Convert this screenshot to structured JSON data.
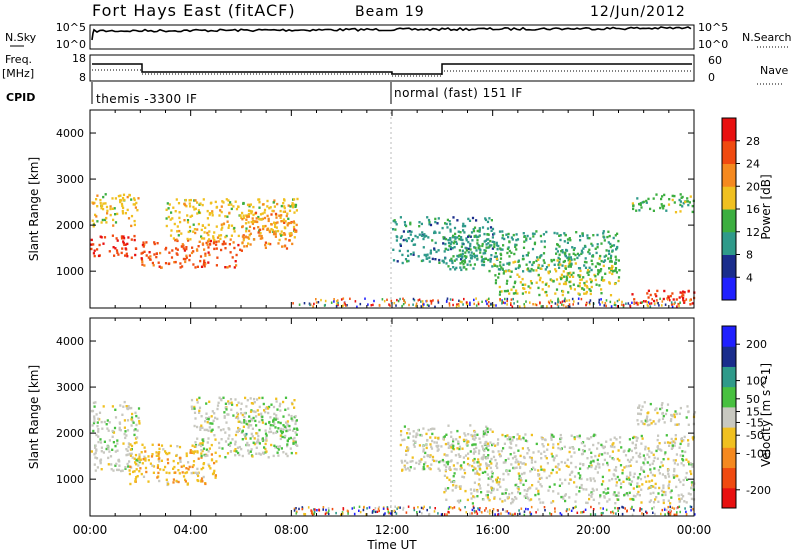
{
  "header": {
    "station": "Fort Hays East (fitACF)",
    "beam": "Beam 19",
    "date": "12/Jun/2012"
  },
  "summary_panels": {
    "nsky_label": "N.Sky",
    "nsky_ticks": [
      "10^5",
      "10^0"
    ],
    "nsearch_label": "N.Search",
    "nsearch_ticks": [
      "10^5",
      "10^0"
    ],
    "freq_label_line1": "Freq.",
    "freq_label_line2": "[MHz]",
    "freq_ticks": [
      "18",
      "8"
    ],
    "nave_label": "Nave",
    "nave_ticks": [
      "60",
      "0"
    ],
    "cpid_label": "CPID",
    "cpid_modes": [
      "themis -3300 IF",
      "normal (fast) 151 IF"
    ]
  },
  "colors": {
    "power_scale": [
      "#2020ff",
      "#1a2d8c",
      "#2f9a8a",
      "#3cae40",
      "#f0c020",
      "#f5891f",
      "#f04a10",
      "#e81010"
    ],
    "velocity_scale": [
      "#e81010",
      "#f04a10",
      "#f5891f",
      "#f0c020",
      "#c8c8c0",
      "#48c040",
      "#2f9a8a",
      "#1a2d8c",
      "#2020ff"
    ]
  },
  "chart_data": [
    {
      "type": "heatmap",
      "title": "",
      "xlabel": "Time UT",
      "ylabel": "Slant Range [km]",
      "x_ticks": [
        "00:00",
        "04:00",
        "08:00",
        "12:00",
        "16:00",
        "20:00",
        "00:00"
      ],
      "xlim_hours": [
        0,
        24
      ],
      "y_ticks": [
        "1000",
        "2000",
        "3000",
        "4000"
      ],
      "ylim": [
        200,
        4500
      ],
      "colorbar_label": "Power [dB]",
      "colorbar_ticks": [
        "28",
        "24",
        "20",
        "16",
        "12",
        "8",
        "4"
      ],
      "colorbar_range": [
        0,
        32
      ],
      "scatter_bands": [
        {
          "t": [
            0,
            1.8
          ],
          "r": [
            1300,
            1800
          ],
          "value": 28
        },
        {
          "t": [
            0,
            2
          ],
          "r": [
            2000,
            2700
          ],
          "value": 18
        },
        {
          "t": [
            2,
            6
          ],
          "r": [
            1100,
            1700
          ],
          "value": 26
        },
        {
          "t": [
            3,
            8.2
          ],
          "r": [
            1700,
            2600
          ],
          "value": 18
        },
        {
          "t": [
            6,
            8.2
          ],
          "r": [
            1500,
            2300
          ],
          "value": 22
        },
        {
          "t": [
            12,
            16
          ],
          "r": [
            1200,
            2200
          ],
          "value": 10
        },
        {
          "t": [
            14,
            21
          ],
          "r": [
            1000,
            1900
          ],
          "value": 12
        },
        {
          "t": [
            16,
            21
          ],
          "r": [
            500,
            1300
          ],
          "value": 16
        },
        {
          "t": [
            21.5,
            24
          ],
          "r": [
            300,
            600
          ],
          "value": 28
        },
        {
          "t": [
            21.5,
            24
          ],
          "r": [
            2300,
            2700
          ],
          "value": 14
        }
      ]
    },
    {
      "type": "heatmap",
      "title": "",
      "xlabel": "Time UT",
      "ylabel": "Slant Range [km]",
      "x_ticks": [
        "00:00",
        "04:00",
        "08:00",
        "12:00",
        "16:00",
        "20:00",
        "00:00"
      ],
      "xlim_hours": [
        0,
        24
      ],
      "y_ticks": [
        "1000",
        "2000",
        "3000",
        "4000"
      ],
      "ylim": [
        200,
        4500
      ],
      "colorbar_label": "Velocity [m s^-1]",
      "colorbar_ticks": [
        "200",
        "100",
        "50",
        "15",
        "-15",
        "-50",
        "-100",
        "-200"
      ],
      "colorbar_range": [
        -250,
        250
      ],
      "scatter_bands": [
        {
          "t": [
            0,
            2
          ],
          "r": [
            1200,
            2700
          ],
          "value": 0
        },
        {
          "t": [
            1.5,
            5
          ],
          "r": [
            900,
            1800
          ],
          "value": -60
        },
        {
          "t": [
            4,
            8.2
          ],
          "r": [
            1500,
            2800
          ],
          "value": 0
        },
        {
          "t": [
            6,
            8.2
          ],
          "r": [
            1700,
            2400
          ],
          "value": 40
        },
        {
          "t": [
            12.3,
            16
          ],
          "r": [
            1200,
            2200
          ],
          "value": 0
        },
        {
          "t": [
            14,
            24
          ],
          "r": [
            500,
            2000
          ],
          "value": 0
        },
        {
          "t": [
            21.5,
            24
          ],
          "r": [
            2200,
            2700
          ],
          "value": 0
        }
      ]
    }
  ]
}
